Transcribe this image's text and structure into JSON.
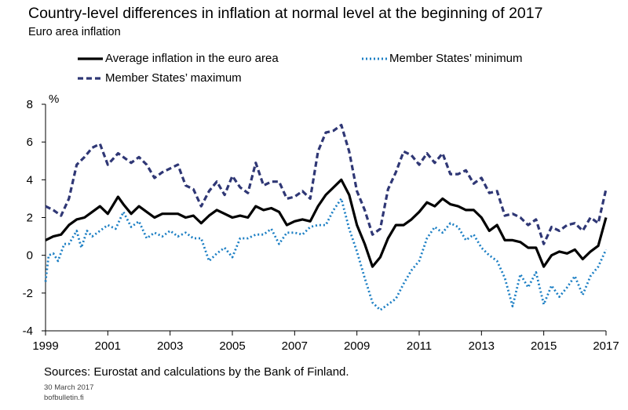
{
  "title": "Country-level differences in inflation at normal level at the beginning of 2017",
  "subtitle": "Euro area inflation",
  "legend": {
    "avg": "Average inflation in the euro area",
    "min": "Member States’ minimum",
    "max": "Member States’ maximum"
  },
  "footer": {
    "source": "Sources: Eurostat and calculations by the Bank of Finland.",
    "date": "30 March 2017",
    "site": "bofbulletin.fi"
  },
  "colors": {
    "avg": "#000000",
    "max": "#2f3775",
    "min": "#1c7fc4"
  },
  "chart_data": {
    "type": "line",
    "ylabel": "%",
    "ylim": [
      -4,
      8
    ],
    "xlim": [
      1999,
      2017
    ],
    "yticks": [
      -4,
      -2,
      0,
      2,
      4,
      6,
      8
    ],
    "xticks": [
      "1999",
      "2001",
      "2003",
      "2005",
      "2007",
      "2009",
      "2011",
      "2013",
      "2015",
      "2017"
    ],
    "grid": false,
    "legend_position": "top",
    "series": [
      {
        "name": "Average inflation in the euro area",
        "style": "solid",
        "points": [
          [
            1999.0,
            0.8
          ],
          [
            1999.25,
            1.0
          ],
          [
            1999.5,
            1.1
          ],
          [
            1999.75,
            1.6
          ],
          [
            2000.0,
            1.9
          ],
          [
            2000.25,
            2.0
          ],
          [
            2000.5,
            2.3
          ],
          [
            2000.75,
            2.6
          ],
          [
            2001.0,
            2.2
          ],
          [
            2001.33,
            3.1
          ],
          [
            2001.5,
            2.7
          ],
          [
            2001.75,
            2.2
          ],
          [
            2002.0,
            2.6
          ],
          [
            2002.25,
            2.3
          ],
          [
            2002.5,
            2.0
          ],
          [
            2002.75,
            2.2
          ],
          [
            2003.0,
            2.2
          ],
          [
            2003.25,
            2.2
          ],
          [
            2003.5,
            2.0
          ],
          [
            2003.75,
            2.1
          ],
          [
            2004.0,
            1.7
          ],
          [
            2004.25,
            2.1
          ],
          [
            2004.5,
            2.4
          ],
          [
            2004.75,
            2.2
          ],
          [
            2005.0,
            2.0
          ],
          [
            2005.25,
            2.1
          ],
          [
            2005.5,
            2.0
          ],
          [
            2005.75,
            2.6
          ],
          [
            2006.0,
            2.4
          ],
          [
            2006.25,
            2.5
          ],
          [
            2006.5,
            2.3
          ],
          [
            2006.75,
            1.6
          ],
          [
            2007.0,
            1.8
          ],
          [
            2007.25,
            1.9
          ],
          [
            2007.5,
            1.8
          ],
          [
            2007.75,
            2.6
          ],
          [
            2008.0,
            3.2
          ],
          [
            2008.25,
            3.6
          ],
          [
            2008.5,
            4.0
          ],
          [
            2008.75,
            3.2
          ],
          [
            2009.0,
            1.6
          ],
          [
            2009.25,
            0.6
          ],
          [
            2009.5,
            -0.6
          ],
          [
            2009.75,
            -0.1
          ],
          [
            2010.0,
            0.9
          ],
          [
            2010.25,
            1.6
          ],
          [
            2010.5,
            1.6
          ],
          [
            2010.75,
            1.9
          ],
          [
            2011.0,
            2.3
          ],
          [
            2011.25,
            2.8
          ],
          [
            2011.5,
            2.6
          ],
          [
            2011.75,
            3.0
          ],
          [
            2012.0,
            2.7
          ],
          [
            2012.25,
            2.6
          ],
          [
            2012.5,
            2.4
          ],
          [
            2012.75,
            2.4
          ],
          [
            2013.0,
            2.0
          ],
          [
            2013.25,
            1.3
          ],
          [
            2013.5,
            1.6
          ],
          [
            2013.75,
            0.8
          ],
          [
            2014.0,
            0.8
          ],
          [
            2014.25,
            0.7
          ],
          [
            2014.5,
            0.4
          ],
          [
            2014.75,
            0.4
          ],
          [
            2015.0,
            -0.6
          ],
          [
            2015.25,
            0.0
          ],
          [
            2015.5,
            0.2
          ],
          [
            2015.75,
            0.1
          ],
          [
            2016.0,
            0.3
          ],
          [
            2016.25,
            -0.2
          ],
          [
            2016.5,
            0.2
          ],
          [
            2016.75,
            0.5
          ],
          [
            2017.0,
            2.0
          ]
        ]
      },
      {
        "name": "Member States’ maximum",
        "style": "dashed",
        "points": [
          [
            1999.0,
            2.6
          ],
          [
            1999.25,
            2.4
          ],
          [
            1999.5,
            2.1
          ],
          [
            1999.75,
            3.0
          ],
          [
            2000.0,
            4.8
          ],
          [
            2000.25,
            5.2
          ],
          [
            2000.5,
            5.7
          ],
          [
            2000.75,
            5.9
          ],
          [
            2001.0,
            4.8
          ],
          [
            2001.33,
            5.4
          ],
          [
            2001.5,
            5.2
          ],
          [
            2001.75,
            4.9
          ],
          [
            2002.0,
            5.2
          ],
          [
            2002.25,
            4.8
          ],
          [
            2002.5,
            4.1
          ],
          [
            2002.75,
            4.4
          ],
          [
            2003.0,
            4.6
          ],
          [
            2003.25,
            4.8
          ],
          [
            2003.5,
            3.7
          ],
          [
            2003.75,
            3.5
          ],
          [
            2004.0,
            2.6
          ],
          [
            2004.25,
            3.4
          ],
          [
            2004.5,
            3.9
          ],
          [
            2004.75,
            3.2
          ],
          [
            2005.0,
            4.2
          ],
          [
            2005.25,
            3.6
          ],
          [
            2005.5,
            3.3
          ],
          [
            2005.75,
            4.9
          ],
          [
            2006.0,
            3.7
          ],
          [
            2006.25,
            3.9
          ],
          [
            2006.5,
            3.9
          ],
          [
            2006.75,
            3.0
          ],
          [
            2007.0,
            3.1
          ],
          [
            2007.25,
            3.4
          ],
          [
            2007.5,
            3.0
          ],
          [
            2007.75,
            5.5
          ],
          [
            2008.0,
            6.5
          ],
          [
            2008.25,
            6.6
          ],
          [
            2008.5,
            6.9
          ],
          [
            2008.75,
            5.5
          ],
          [
            2009.0,
            3.4
          ],
          [
            2009.25,
            2.4
          ],
          [
            2009.5,
            1.1
          ],
          [
            2009.75,
            1.4
          ],
          [
            2010.0,
            3.5
          ],
          [
            2010.25,
            4.4
          ],
          [
            2010.5,
            5.5
          ],
          [
            2010.75,
            5.3
          ],
          [
            2011.0,
            4.8
          ],
          [
            2011.25,
            5.4
          ],
          [
            2011.5,
            4.9
          ],
          [
            2011.75,
            5.4
          ],
          [
            2012.0,
            4.3
          ],
          [
            2012.25,
            4.3
          ],
          [
            2012.5,
            4.5
          ],
          [
            2012.75,
            3.8
          ],
          [
            2013.0,
            4.1
          ],
          [
            2013.25,
            3.3
          ],
          [
            2013.5,
            3.4
          ],
          [
            2013.75,
            2.1
          ],
          [
            2014.0,
            2.2
          ],
          [
            2014.25,
            2.0
          ],
          [
            2014.5,
            1.6
          ],
          [
            2014.75,
            1.9
          ],
          [
            2015.0,
            0.6
          ],
          [
            2015.25,
            1.5
          ],
          [
            2015.5,
            1.3
          ],
          [
            2015.75,
            1.6
          ],
          [
            2016.0,
            1.7
          ],
          [
            2016.25,
            1.3
          ],
          [
            2016.5,
            2.0
          ],
          [
            2016.75,
            1.7
          ],
          [
            2017.0,
            3.5
          ]
        ]
      },
      {
        "name": "Member States’ minimum",
        "style": "dotted",
        "points": [
          [
            1999.0,
            -1.4
          ],
          [
            1999.1,
            0.0
          ],
          [
            1999.25,
            0.1
          ],
          [
            1999.4,
            -0.3
          ],
          [
            1999.6,
            0.6
          ],
          [
            1999.75,
            0.6
          ],
          [
            2000.0,
            1.3
          ],
          [
            2000.15,
            0.4
          ],
          [
            2000.33,
            1.3
          ],
          [
            2000.5,
            1.0
          ],
          [
            2000.75,
            1.3
          ],
          [
            2001.0,
            1.6
          ],
          [
            2001.25,
            1.4
          ],
          [
            2001.5,
            2.3
          ],
          [
            2001.75,
            1.5
          ],
          [
            2002.0,
            1.8
          ],
          [
            2002.25,
            0.9
          ],
          [
            2002.5,
            1.2
          ],
          [
            2002.75,
            1.0
          ],
          [
            2003.0,
            1.3
          ],
          [
            2003.25,
            1.0
          ],
          [
            2003.5,
            1.2
          ],
          [
            2003.75,
            0.9
          ],
          [
            2004.0,
            0.9
          ],
          [
            2004.25,
            -0.3
          ],
          [
            2004.5,
            0.1
          ],
          [
            2004.75,
            0.4
          ],
          [
            2005.0,
            -0.1
          ],
          [
            2005.25,
            0.9
          ],
          [
            2005.5,
            0.9
          ],
          [
            2005.75,
            1.1
          ],
          [
            2006.0,
            1.1
          ],
          [
            2006.25,
            1.4
          ],
          [
            2006.5,
            0.6
          ],
          [
            2006.75,
            1.2
          ],
          [
            2007.0,
            1.2
          ],
          [
            2007.25,
            1.1
          ],
          [
            2007.5,
            1.5
          ],
          [
            2007.75,
            1.6
          ],
          [
            2008.0,
            1.6
          ],
          [
            2008.25,
            2.4
          ],
          [
            2008.5,
            3.0
          ],
          [
            2008.75,
            1.4
          ],
          [
            2009.0,
            0.2
          ],
          [
            2009.25,
            -1.2
          ],
          [
            2009.5,
            -2.5
          ],
          [
            2009.75,
            -2.9
          ],
          [
            2010.0,
            -2.6
          ],
          [
            2010.25,
            -2.3
          ],
          [
            2010.5,
            -1.5
          ],
          [
            2010.75,
            -0.8
          ],
          [
            2011.0,
            -0.3
          ],
          [
            2011.25,
            0.9
          ],
          [
            2011.5,
            1.5
          ],
          [
            2011.75,
            1.2
          ],
          [
            2012.0,
            1.7
          ],
          [
            2012.25,
            1.5
          ],
          [
            2012.5,
            0.8
          ],
          [
            2012.75,
            1.1
          ],
          [
            2013.0,
            0.4
          ],
          [
            2013.25,
            0.0
          ],
          [
            2013.5,
            -0.3
          ],
          [
            2013.75,
            -1.2
          ],
          [
            2014.0,
            -2.7
          ],
          [
            2014.25,
            -1.0
          ],
          [
            2014.5,
            -1.7
          ],
          [
            2014.75,
            -0.9
          ],
          [
            2015.0,
            -2.6
          ],
          [
            2015.25,
            -1.6
          ],
          [
            2015.5,
            -2.2
          ],
          [
            2015.75,
            -1.7
          ],
          [
            2016.0,
            -1.1
          ],
          [
            2016.25,
            -2.1
          ],
          [
            2016.5,
            -1.1
          ],
          [
            2016.75,
            -0.6
          ],
          [
            2017.0,
            0.3
          ]
        ]
      }
    ]
  }
}
